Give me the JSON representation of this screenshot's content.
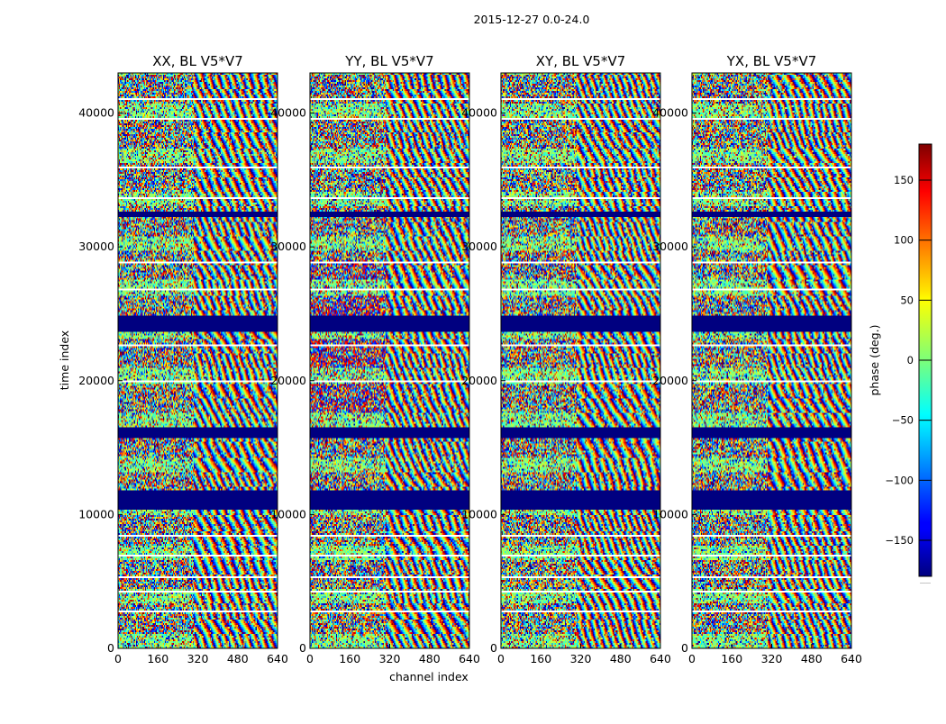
{
  "chart_data": {
    "type": "heatmap",
    "suptitle": "2015-12-27 0.0-24.0",
    "xlabel": "channel index",
    "ylabel": "time index",
    "xlim": [
      0,
      640
    ],
    "ylim": [
      0,
      43000
    ],
    "xticks": [
      "0",
      "160",
      "320",
      "480",
      "640"
    ],
    "yticks": [
      "0",
      "10000",
      "20000",
      "30000",
      "40000"
    ],
    "xtick_values": [
      0,
      160,
      320,
      480,
      640
    ],
    "ytick_values": [
      0,
      10000,
      20000,
      30000,
      40000
    ],
    "panels": [
      {
        "title": "XX, BL V5*V7",
        "pol": "XX"
      },
      {
        "title": "YY, BL V5*V7",
        "pol": "YY"
      },
      {
        "title": "XY, BL V5*V7",
        "pol": "XY"
      },
      {
        "title": "YX, BL V5*V7",
        "pol": "YX"
      }
    ],
    "flagged_time_ranges": [
      [
        10300,
        11800
      ],
      [
        15700,
        16500
      ],
      [
        23700,
        24800
      ],
      [
        32300,
        32600
      ]
    ],
    "separator_rows": [
      2800,
      4200,
      5300,
      6900,
      8400,
      20000,
      22600,
      26800,
      28800,
      33600,
      36000,
      39600,
      41000
    ],
    "colorbar": {
      "label": "phase (deg.)",
      "vmin": -180,
      "vmax": 180,
      "ticks": [
        "150",
        "100",
        "50",
        "0",
        "−50",
        "−100",
        "−150"
      ],
      "tick_values": [
        150,
        100,
        50,
        0,
        -50,
        -100,
        -150
      ],
      "colormap": "jet",
      "footnote": "……"
    },
    "colors": {
      "flagged": "#000080",
      "frame": "#000000"
    }
  }
}
